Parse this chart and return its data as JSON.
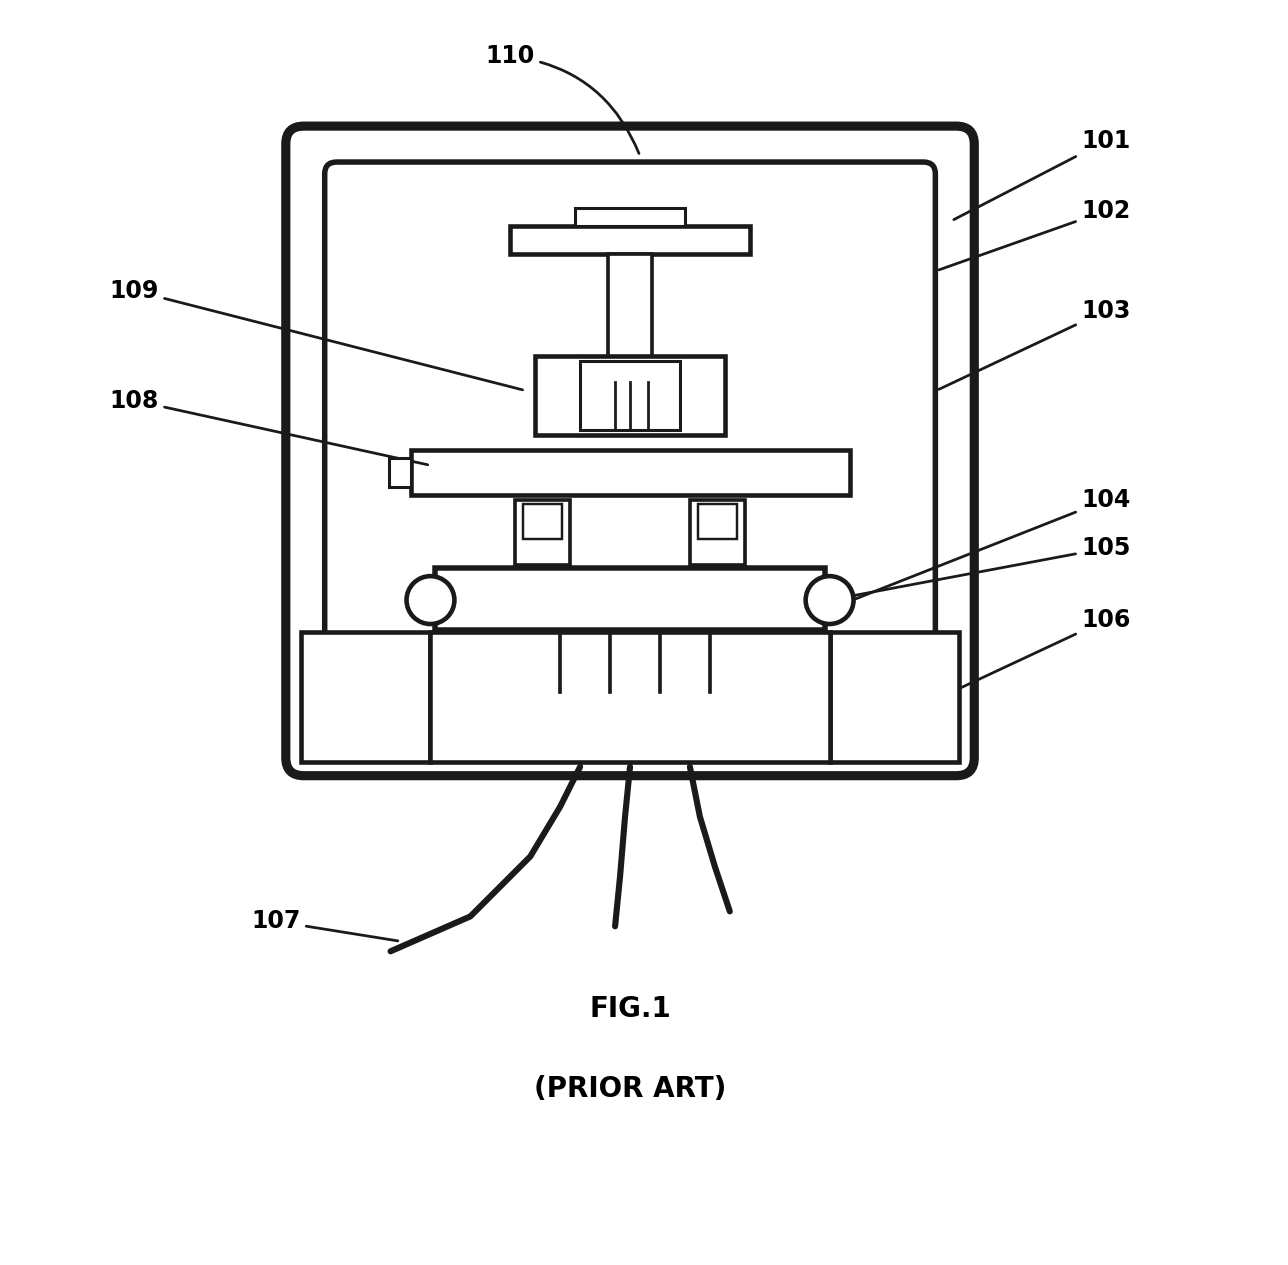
{
  "bg_color": "#ffffff",
  "line_color": "#1a1a1a",
  "fig_label": "FIG.1",
  "fig_sublabel": "(PRIOR ART)",
  "label_fontsize": 17,
  "caption_fontsize": 20,
  "linewidth": 2.2,
  "fig_width": 12.88,
  "fig_height": 12.65
}
